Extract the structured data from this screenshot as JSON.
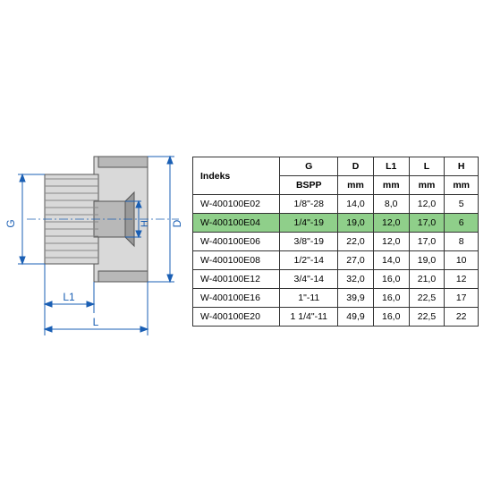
{
  "diagram": {
    "dim_color": "#1a5fb4",
    "shape_stroke": "#555555",
    "shape_fill_light": "#d9d9d9",
    "shape_fill_mid": "#b8b8b8",
    "shape_fill_dark": "#999999",
    "labels": {
      "G": "G",
      "D": "D",
      "L1": "L1",
      "L": "L",
      "H": "H"
    },
    "label_fontsize": 12
  },
  "table": {
    "headers": [
      "Indeks",
      "G",
      "D",
      "L1",
      "L",
      "H"
    ],
    "units_row": [
      "",
      "BSPP",
      "mm",
      "mm",
      "mm",
      "mm"
    ],
    "highlight_index": 1,
    "highlight_color": "#8fcf8a",
    "border_color": "#333333",
    "fontsize": 10.5,
    "rows": [
      [
        "W-400100E02",
        "1/8\"-28",
        "14,0",
        "8,0",
        "12,0",
        "5"
      ],
      [
        "W-400100E04",
        "1/4\"-19",
        "19,0",
        "12,0",
        "17,0",
        "6"
      ],
      [
        "W-400100E06",
        "3/8\"-19",
        "22,0",
        "12,0",
        "17,0",
        "8"
      ],
      [
        "W-400100E08",
        "1/2\"-14",
        "27,0",
        "14,0",
        "19,0",
        "10"
      ],
      [
        "W-400100E12",
        "3/4\"-14",
        "32,0",
        "16,0",
        "21,0",
        "12"
      ],
      [
        "W-400100E16",
        "1\"-11",
        "39,9",
        "16,0",
        "22,5",
        "17"
      ],
      [
        "W-400100E20",
        "1 1/4\"-11",
        "49,9",
        "16,0",
        "22,5",
        "22"
      ]
    ]
  }
}
